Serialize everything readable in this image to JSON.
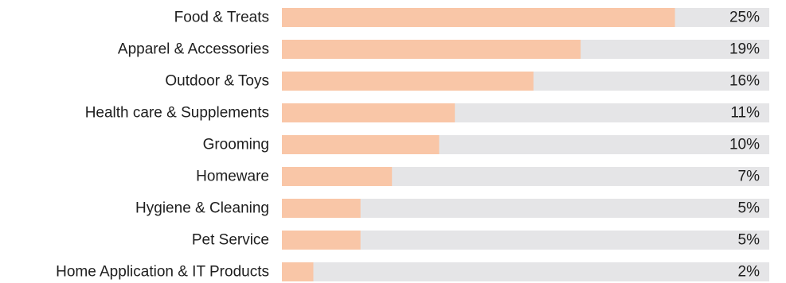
{
  "chart_data": {
    "type": "bar",
    "orientation": "horizontal",
    "categories": [
      "Food & Treats",
      "Apparel & Accessories",
      "Outdoor & Toys",
      "Health care & Supplements",
      "Grooming",
      "Homeware",
      "Hygiene & Cleaning",
      "Pet Service",
      "Home Application & IT Products"
    ],
    "values": [
      25,
      19,
      16,
      11,
      10,
      7,
      5,
      5,
      2
    ],
    "value_labels": [
      "25%",
      "19%",
      "16%",
      "11%",
      "10%",
      "7%",
      "5%",
      "5%",
      "2%"
    ],
    "unit": "%",
    "xlim": [
      0,
      31
    ],
    "title": "",
    "xlabel": "",
    "ylabel": "",
    "grid": false,
    "legend": "none",
    "colors": {
      "bar": "#f9c6a7",
      "track": "#e5e5e7",
      "text": "#1e1e1e"
    }
  }
}
